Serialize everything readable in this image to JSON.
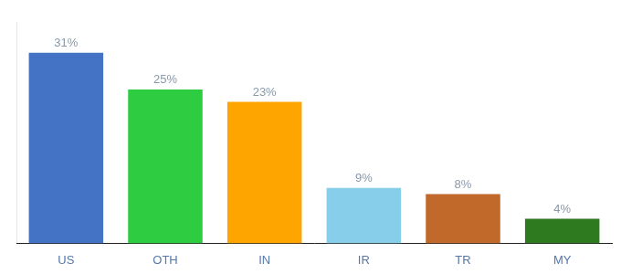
{
  "chart_data": {
    "type": "bar",
    "categories": [
      "US",
      "OTH",
      "IN",
      "IR",
      "TR",
      "MY"
    ],
    "values": [
      31,
      25,
      23,
      9,
      8,
      4
    ],
    "value_labels": [
      "31%",
      "25%",
      "23%",
      "9%",
      "8%",
      "4%"
    ],
    "colors": [
      "#4472C4",
      "#2ECC40",
      "#FFA500",
      "#87CEEB",
      "#C0692A",
      "#2D7A1F"
    ],
    "ylim": [
      0,
      36
    ],
    "data_labels": true,
    "tick_labels": "x",
    "grid": false
  }
}
